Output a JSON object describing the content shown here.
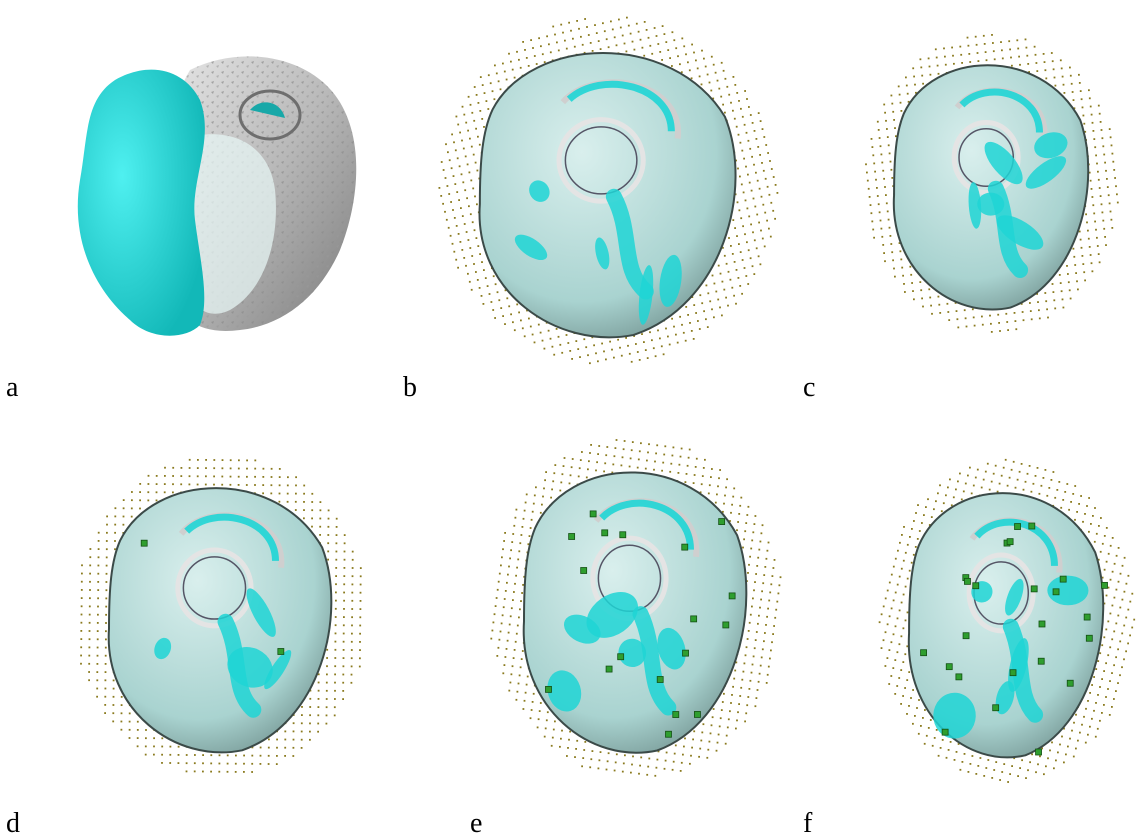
{
  "panels": [
    {
      "id": "a",
      "label": "a",
      "style": "overlay"
    },
    {
      "id": "b",
      "label": "b",
      "style": "grid",
      "markers": 0
    },
    {
      "id": "c",
      "label": "c",
      "style": "grid",
      "markers": 0
    },
    {
      "id": "d",
      "label": "d",
      "style": "grid",
      "markers": 2
    },
    {
      "id": "e",
      "label": "e",
      "style": "grid",
      "markers": 18
    },
    {
      "id": "f",
      "label": "f",
      "style": "grid",
      "markers": 24
    }
  ],
  "colors": {
    "cyan": "#1fd5d5",
    "surface": "#a9d3d0",
    "grey_surface": "#bdbdbd",
    "dots": "#8a7a1e",
    "markers": "#2f9e2f"
  }
}
